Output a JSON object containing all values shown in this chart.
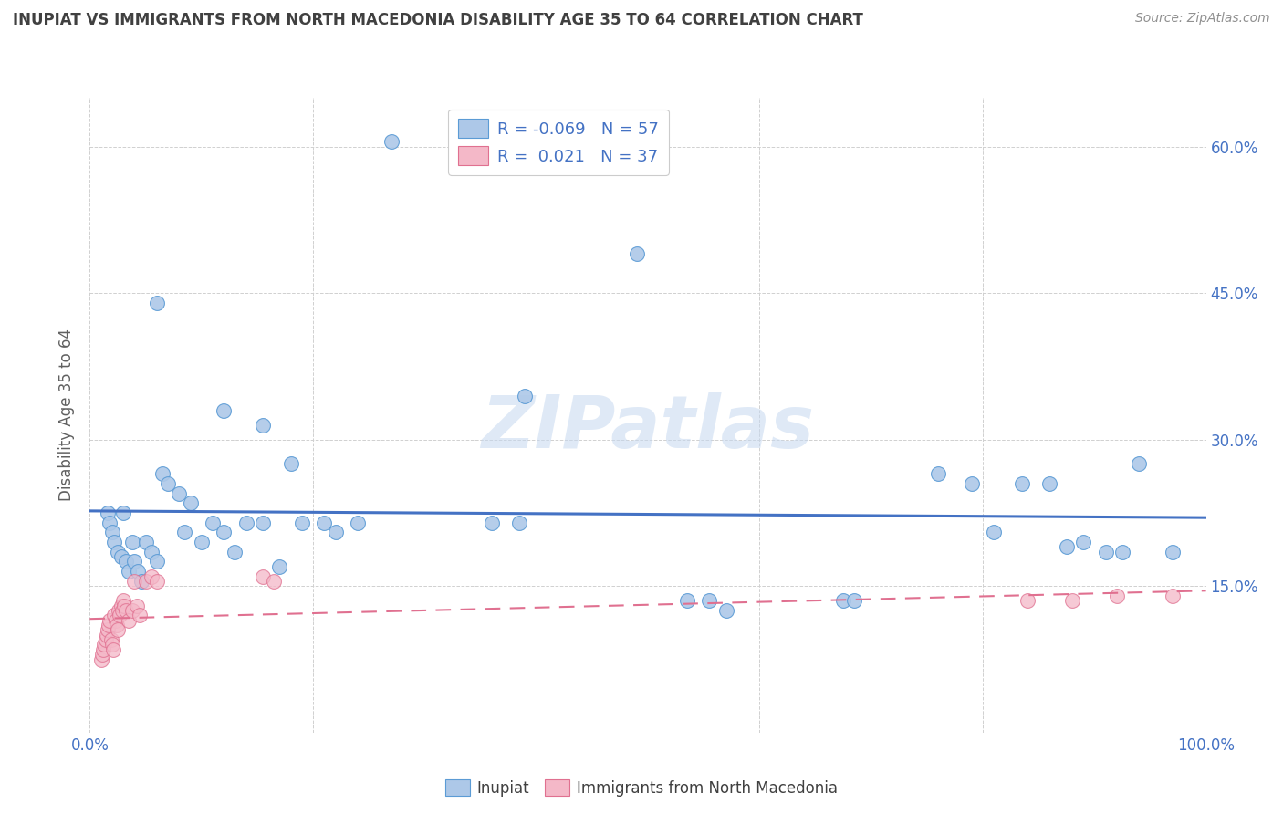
{
  "title": "INUPIAT VS IMMIGRANTS FROM NORTH MACEDONIA DISABILITY AGE 35 TO 64 CORRELATION CHART",
  "source": "Source: ZipAtlas.com",
  "ylabel": "Disability Age 35 to 64",
  "xlim": [
    0,
    1.0
  ],
  "ylim": [
    0,
    0.65
  ],
  "ytick_positions": [
    0.0,
    0.15,
    0.3,
    0.45,
    0.6
  ],
  "ytick_labels": [
    "",
    "15.0%",
    "30.0%",
    "45.0%",
    "60.0%"
  ],
  "xtick_positions": [
    0.0,
    0.2,
    0.4,
    0.6,
    0.8,
    1.0
  ],
  "xtick_labels_shown": {
    "0.0": "0.0%",
    "1.0": "100.0%"
  },
  "blue_face": "#adc8e8",
  "blue_edge": "#5b9bd5",
  "pink_face": "#f4b8c8",
  "pink_edge": "#e07090",
  "blue_line": "#4472c4",
  "pink_line": "#e07090",
  "grid_color": "#d0d0d0",
  "watermark_color": "#c5d8f0",
  "title_color": "#404040",
  "axis_label_color": "#606060",
  "tick_color": "#4472c4",
  "source_color": "#909090",
  "legend_label_color": "#4472c4",
  "bottom_legend_color": "#404040",
  "inupiat_x": [
    0.27,
    0.49,
    0.06,
    0.12,
    0.155,
    0.18,
    0.016,
    0.018,
    0.02,
    0.022,
    0.025,
    0.028,
    0.03,
    0.032,
    0.035,
    0.038,
    0.04,
    0.043,
    0.046,
    0.05,
    0.055,
    0.06,
    0.065,
    0.07,
    0.08,
    0.085,
    0.09,
    0.1,
    0.11,
    0.12,
    0.13,
    0.14,
    0.155,
    0.17,
    0.19,
    0.21,
    0.22,
    0.24,
    0.36,
    0.385,
    0.39,
    0.535,
    0.555,
    0.57,
    0.675,
    0.685,
    0.76,
    0.79,
    0.81,
    0.835,
    0.86,
    0.875,
    0.89,
    0.91,
    0.925,
    0.94,
    0.97
  ],
  "inupiat_y": [
    0.605,
    0.49,
    0.44,
    0.33,
    0.315,
    0.275,
    0.225,
    0.215,
    0.205,
    0.195,
    0.185,
    0.18,
    0.225,
    0.175,
    0.165,
    0.195,
    0.175,
    0.165,
    0.155,
    0.195,
    0.185,
    0.175,
    0.265,
    0.255,
    0.245,
    0.205,
    0.235,
    0.195,
    0.215,
    0.205,
    0.185,
    0.215,
    0.215,
    0.17,
    0.215,
    0.215,
    0.205,
    0.215,
    0.215,
    0.215,
    0.345,
    0.135,
    0.135,
    0.125,
    0.135,
    0.135,
    0.265,
    0.255,
    0.205,
    0.255,
    0.255,
    0.19,
    0.195,
    0.185,
    0.185,
    0.275,
    0.185
  ],
  "macedonia_x": [
    0.01,
    0.011,
    0.012,
    0.013,
    0.014,
    0.015,
    0.016,
    0.017,
    0.018,
    0.019,
    0.02,
    0.021,
    0.022,
    0.023,
    0.024,
    0.025,
    0.026,
    0.027,
    0.028,
    0.029,
    0.03,
    0.031,
    0.032,
    0.035,
    0.038,
    0.04,
    0.042,
    0.045,
    0.05,
    0.055,
    0.06,
    0.155,
    0.165,
    0.84,
    0.88,
    0.92,
    0.97
  ],
  "macedonia_y": [
    0.075,
    0.08,
    0.085,
    0.09,
    0.095,
    0.1,
    0.105,
    0.11,
    0.115,
    0.095,
    0.09,
    0.085,
    0.12,
    0.115,
    0.11,
    0.105,
    0.125,
    0.12,
    0.13,
    0.125,
    0.135,
    0.13,
    0.125,
    0.115,
    0.125,
    0.155,
    0.13,
    0.12,
    0.155,
    0.16,
    0.155,
    0.16,
    0.155,
    0.135,
    0.135,
    0.14,
    0.14
  ]
}
